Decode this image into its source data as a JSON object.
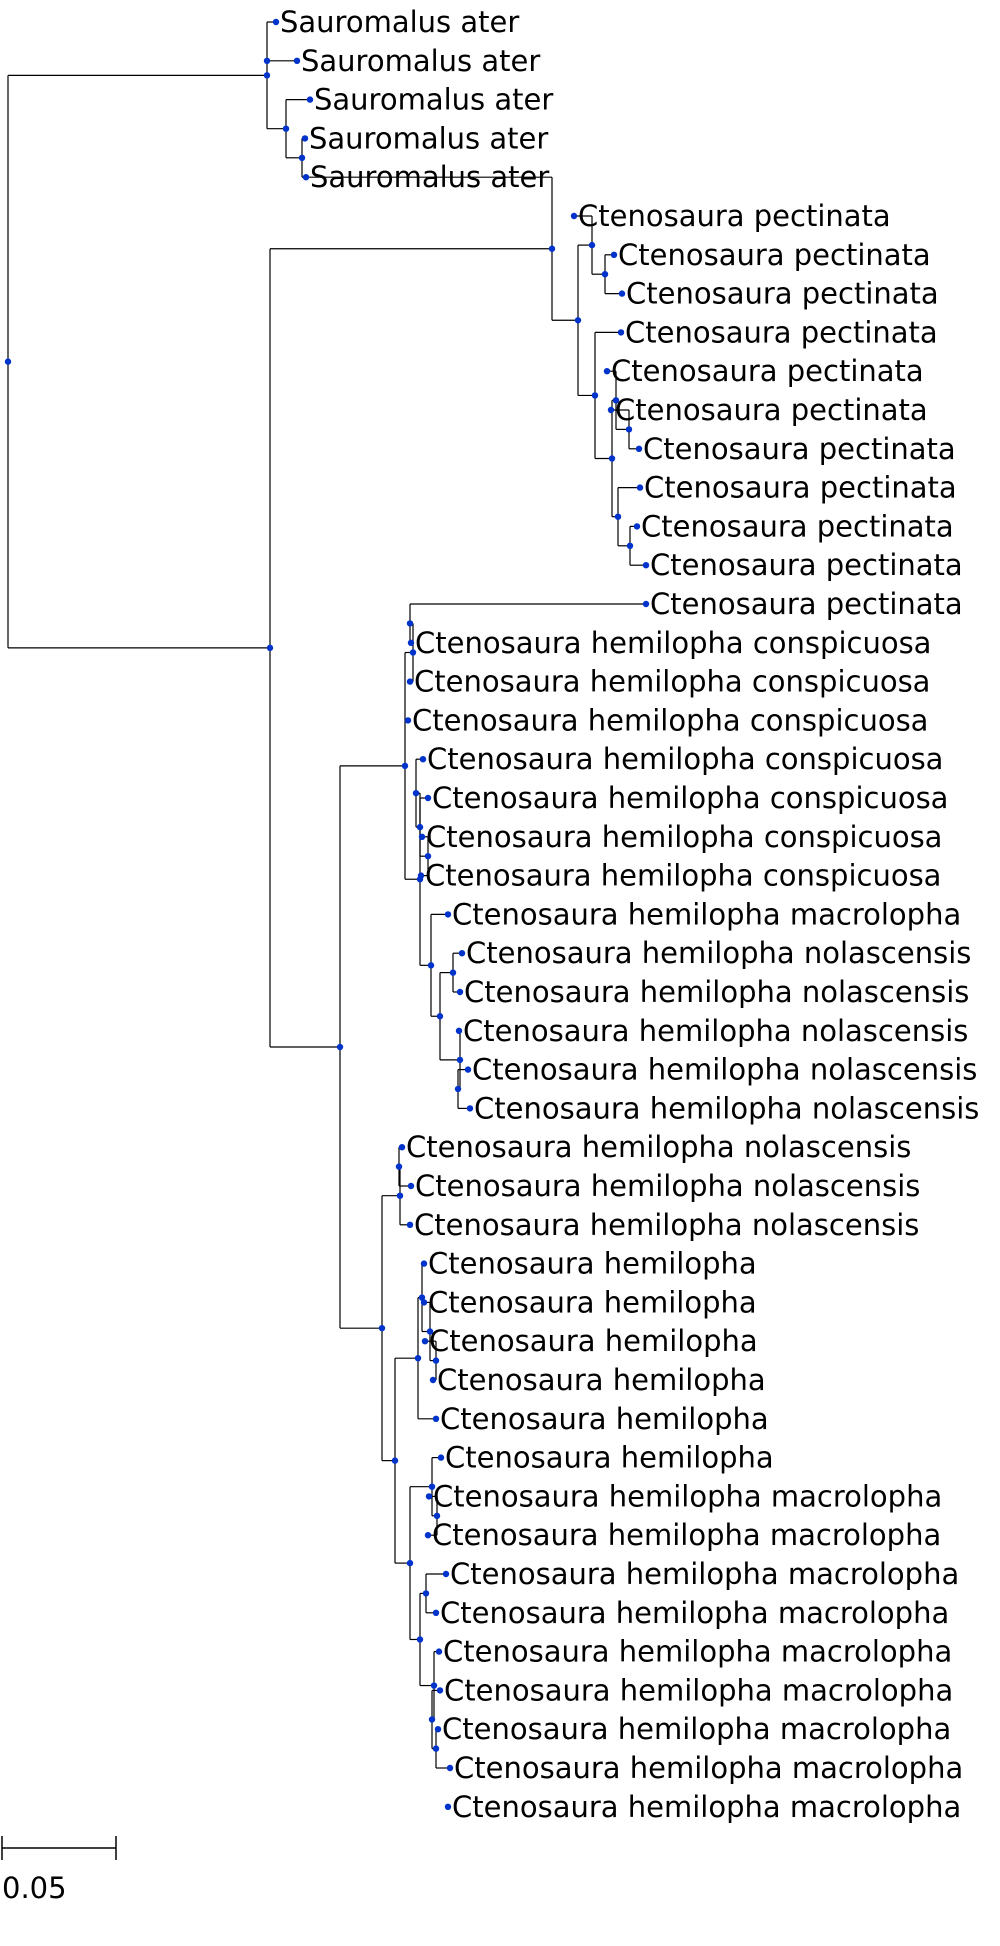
{
  "colors": {
    "branch": "#000000",
    "node": "#0033cc",
    "text": "#000000"
  },
  "scale_bar": {
    "label": "0.05"
  },
  "leaves": [
    "Sauromalus ater",
    "Sauromalus ater",
    "Sauromalus ater",
    "Sauromalus ater",
    "Sauromalus ater",
    "Ctenosaura pectinata",
    "Ctenosaura pectinata",
    "Ctenosaura pectinata",
    "Ctenosaura pectinata",
    "Ctenosaura pectinata",
    "Ctenosaura pectinata",
    "Ctenosaura pectinata",
    "Ctenosaura pectinata",
    "Ctenosaura pectinata",
    "Ctenosaura pectinata",
    "Ctenosaura pectinata",
    "Ctenosaura hemilopha conspicuosa",
    "Ctenosaura hemilopha conspicuosa",
    "Ctenosaura hemilopha conspicuosa",
    "Ctenosaura hemilopha conspicuosa",
    "Ctenosaura hemilopha conspicuosa",
    "Ctenosaura hemilopha conspicuosa",
    "Ctenosaura hemilopha conspicuosa",
    "Ctenosaura hemilopha macrolopha",
    "Ctenosaura hemilopha nolascensis",
    "Ctenosaura hemilopha nolascensis",
    "Ctenosaura hemilopha nolascensis",
    "Ctenosaura hemilopha nolascensis",
    "Ctenosaura hemilopha nolascensis",
    "Ctenosaura hemilopha nolascensis",
    "Ctenosaura hemilopha nolascensis",
    "Ctenosaura hemilopha nolascensis",
    "Ctenosaura hemilopha",
    "Ctenosaura hemilopha",
    "Ctenosaura hemilopha",
    "Ctenosaura hemilopha",
    "Ctenosaura hemilopha",
    "Ctenosaura hemilopha",
    "Ctenosaura hemilopha macrolopha",
    "Ctenosaura hemilopha macrolopha",
    "Ctenosaura hemilopha macrolopha",
    "Ctenosaura hemilopha macrolopha",
    "Ctenosaura hemilopha macrolopha",
    "Ctenosaura hemilopha macrolopha",
    "Ctenosaura hemilopha macrolopha",
    "Ctenosaura hemilopha macrolopha",
    "Ctenosaura hemilopha macrolopha"
  ]
}
